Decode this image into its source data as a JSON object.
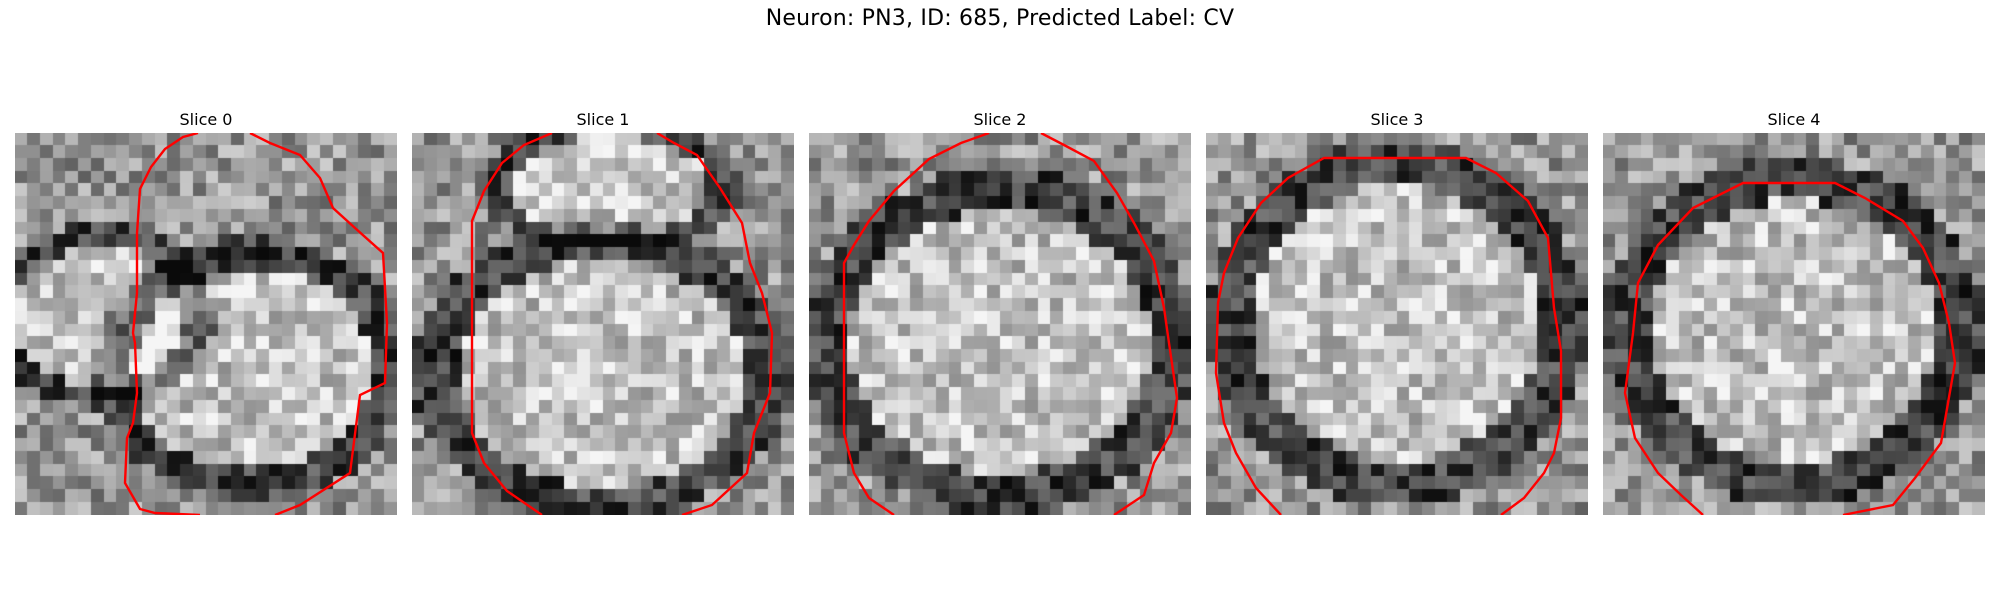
{
  "figure": {
    "title": "Neuron: PN3, ID: 685, Predicted Label: CV",
    "contour_color": "#ff0000"
  },
  "slices": [
    {
      "title": "Slice 0"
    },
    {
      "title": "Slice 1"
    },
    {
      "title": "Slice 2"
    },
    {
      "title": "Slice 3"
    },
    {
      "title": "Slice 4"
    }
  ]
}
